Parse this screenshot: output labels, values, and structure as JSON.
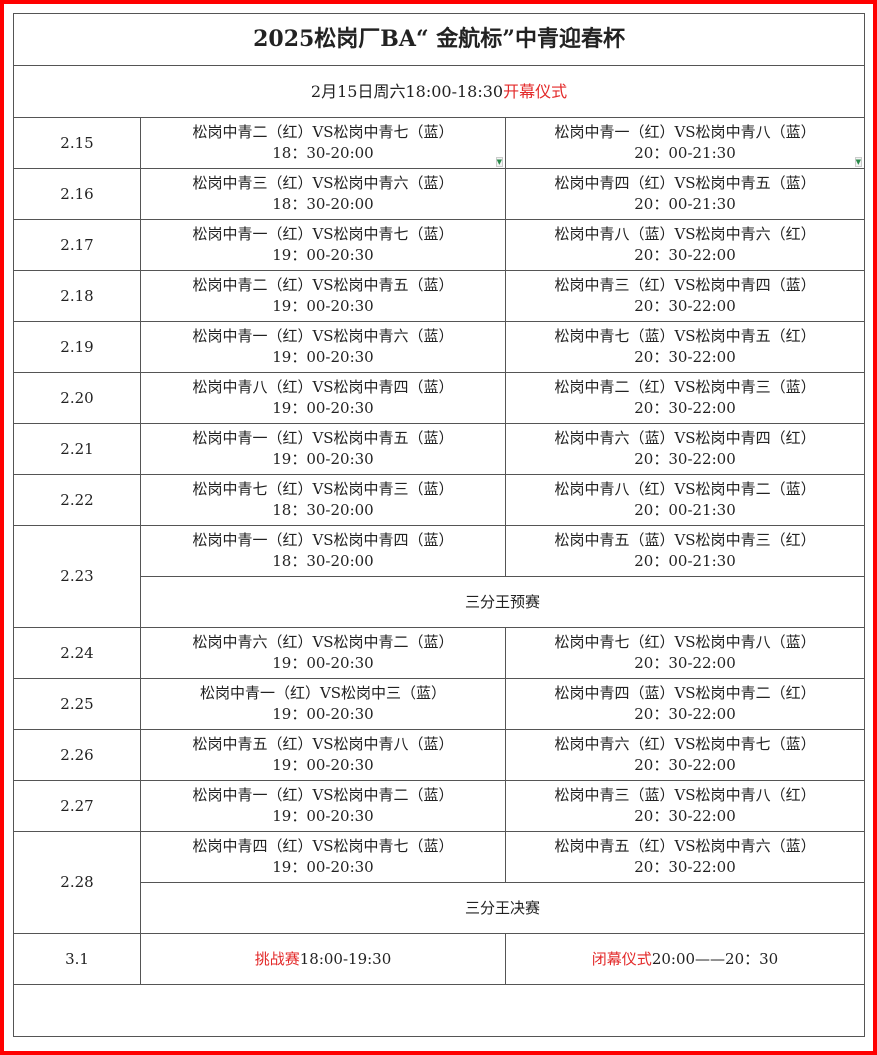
{
  "title": "2025松岗厂BA“ 金航标”中青迎春杯",
  "opening": {
    "time": "2月15日周六18:00-18:30",
    "label": "开幕仪式"
  },
  "colors": {
    "accent": "#e32a2a",
    "frame": "#ff0000"
  },
  "schedule": [
    {
      "date": "2.15",
      "games": [
        {
          "match": "松岗中青二（红）VS松岗中青七（蓝）",
          "time": "18：30-20:00"
        },
        {
          "match": "松岗中青一（红）VS松岗中青八（蓝）",
          "time": "20：00-21:30"
        }
      ]
    },
    {
      "date": "2.16",
      "games": [
        {
          "match": "松岗中青三（红）VS松岗中青六（蓝）",
          "time": "18：30-20:00"
        },
        {
          "match": "松岗中青四（红）VS松岗中青五（蓝）",
          "time": "20：00-21:30"
        }
      ]
    },
    {
      "date": "2.17",
      "games": [
        {
          "match": "松岗中青一（红）VS松岗中青七（蓝）",
          "time": "19：00-20:30"
        },
        {
          "match": "松岗中青八（蓝）VS松岗中青六（红）",
          "time": "20：30-22:00"
        }
      ]
    },
    {
      "date": "2.18",
      "games": [
        {
          "match": "松岗中青二（红）VS松岗中青五（蓝）",
          "time": "19：00-20:30"
        },
        {
          "match": "松岗中青三（红）VS松岗中青四（蓝）",
          "time": "20：30-22:00"
        }
      ]
    },
    {
      "date": "2.19",
      "games": [
        {
          "match": "松岗中青一（红）VS松岗中青六（蓝）",
          "time": "19：00-20:30"
        },
        {
          "match": "松岗中青七（蓝）VS松岗中青五（红）",
          "time": "20：30-22:00"
        }
      ]
    },
    {
      "date": "2.20",
      "games": [
        {
          "match": "松岗中青八（红）VS松岗中青四（蓝）",
          "time": "19：00-20:30"
        },
        {
          "match": "松岗中青二（红）VS松岗中青三（蓝）",
          "time": "20：30-22:00"
        }
      ]
    },
    {
      "date": "2.21",
      "games": [
        {
          "match": "松岗中青一（红）VS松岗中青五（蓝）",
          "time": "19：00-20:30"
        },
        {
          "match": "松岗中青六（蓝）VS松岗中青四（红）",
          "time": "20：30-22:00"
        }
      ]
    },
    {
      "date": "2.22",
      "games": [
        {
          "match": "松岗中青七（红）VS松岗中青三（蓝）",
          "time": "18：30-20:00"
        },
        {
          "match": "松岗中青八（红）VS松岗中青二（蓝）",
          "time": "20：00-21:30"
        }
      ]
    },
    {
      "date": "2.23",
      "games": [
        {
          "match": "松岗中青一（红）VS松岗中青四（蓝）",
          "time": "18：30-20:00"
        },
        {
          "match": "松岗中青五（蓝）VS松岗中青三（红）",
          "time": "20：00-21:30"
        }
      ],
      "extra": "三分王预赛"
    },
    {
      "date": "2.24",
      "games": [
        {
          "match": "松岗中青六（红）VS松岗中青二（蓝）",
          "time": "19：00-20:30"
        },
        {
          "match": "松岗中青七（红）VS松岗中青八（蓝）",
          "time": "20：30-22:00"
        }
      ]
    },
    {
      "date": "2.25",
      "games": [
        {
          "match": "松岗中青一（红）VS松岗中三（蓝）",
          "time": "19：00-20:30"
        },
        {
          "match": "松岗中青四（蓝）VS松岗中青二（红）",
          "time": "20：30-22:00"
        }
      ]
    },
    {
      "date": "2.26",
      "games": [
        {
          "match": "松岗中青五（红）VS松岗中青八（蓝）",
          "time": "19：00-20:30"
        },
        {
          "match": "松岗中青六（红）VS松岗中青七（蓝）",
          "time": "20：30-22:00"
        }
      ]
    },
    {
      "date": "2.27",
      "games": [
        {
          "match": "松岗中青一（红）VS松岗中青二（蓝）",
          "time": "19：00-20:30"
        },
        {
          "match": "松岗中青三（蓝）VS松岗中青八（红）",
          "time": "20：30-22:00"
        }
      ]
    },
    {
      "date": "2.28",
      "games": [
        {
          "match": "松岗中青四（红）VS松岗中青七（蓝）",
          "time": "19：00-20:30"
        },
        {
          "match": "松岗中青五（红）VS松岗中青六（蓝）",
          "time": "20：30-22:00"
        }
      ],
      "extra": "三分王决赛"
    }
  ],
  "final_day": {
    "date": "3.1",
    "challenge": {
      "label": "挑战赛",
      "time": "18:00-19:30"
    },
    "closing": {
      "label": "闭幕仪式",
      "time": "20:00——20：30"
    }
  }
}
